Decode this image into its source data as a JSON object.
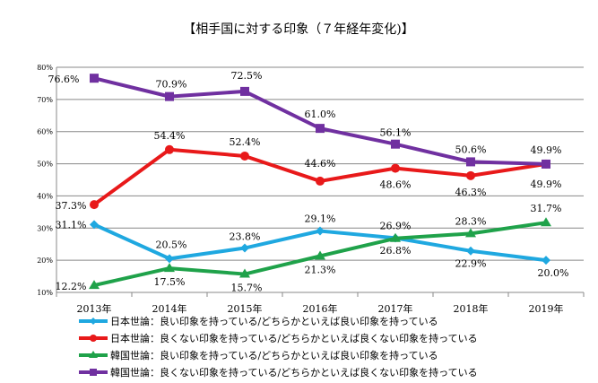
{
  "chart_data": {
    "type": "line",
    "title": "【相手国に対する印象（７年経年変化)】",
    "categories": [
      "2013年",
      "2014年",
      "2015年",
      "2016年",
      "2017年",
      "2018年",
      "2019年"
    ],
    "ylim": [
      10,
      80
    ],
    "yticks": [
      "10%",
      "20%",
      "30%",
      "40%",
      "50%",
      "60%",
      "70%",
      "80%"
    ],
    "grid": true,
    "legend_position": "bottom",
    "series": [
      {
        "name": "日本世論：良い印象を持っている/どちらかといえば良い印象を持っている",
        "color": "#1fa8e0",
        "marker": "diamond",
        "values": [
          31.1,
          20.5,
          23.8,
          29.1,
          26.9,
          22.9,
          20.0
        ],
        "labels": [
          "31.1%",
          "20.5%",
          "23.8%",
          "29.1%",
          "26.9%",
          "22.9%",
          "20.0%"
        ]
      },
      {
        "name": "日本世論：良くない印象を持っている/どちらかといえば良くない印象を持っている",
        "color": "#e8191a",
        "marker": "circle",
        "values": [
          37.3,
          54.4,
          52.4,
          44.6,
          48.6,
          46.3,
          49.9
        ],
        "labels": [
          "37.3%",
          "54.4%",
          "52.4%",
          "44.6%",
          "48.6%",
          "46.3%",
          "49.9%"
        ]
      },
      {
        "name": "韓国世論：良い印象を持っている/どちらかといえば良い印象を持っている",
        "color": "#1fa24a",
        "marker": "triangle",
        "values": [
          12.2,
          17.5,
          15.7,
          21.3,
          26.8,
          28.3,
          31.7
        ],
        "labels": [
          "12.2%",
          "17.5%",
          "15.7%",
          "21.3%",
          "26.8%",
          "28.3%",
          "31.7%"
        ]
      },
      {
        "name": "韓国世論：良くない印象を持っている/どちらかといえば良くない印象を持っている",
        "color": "#7030a0",
        "marker": "square",
        "values": [
          76.6,
          70.9,
          72.5,
          61.0,
          56.1,
          50.6,
          49.9
        ],
        "labels": [
          "76.6%",
          "70.9%",
          "72.5%",
          "61.0%",
          "56.1%",
          "50.6%",
          "49.9%"
        ]
      }
    ]
  }
}
